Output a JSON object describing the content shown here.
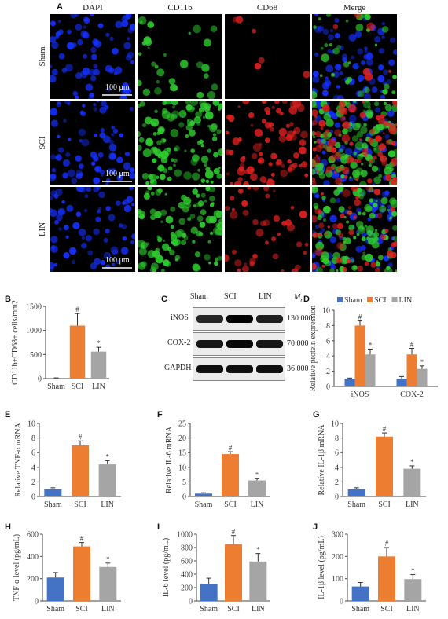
{
  "panels": {
    "A": "A",
    "B": "B",
    "C": "C",
    "D": "D",
    "E": "E",
    "F": "F",
    "G": "G",
    "H": "H",
    "I": "I",
    "J": "J"
  },
  "microscopy": {
    "columns": [
      "DAPI",
      "CD11b",
      "CD68",
      "Merge"
    ],
    "rows": [
      "Sham",
      "SCI",
      "LIN"
    ],
    "scale_bar": "100 μm",
    "colors": {
      "dapi": "#1530ff",
      "cd11b": "#2fcc2f",
      "cd68": "#e02020",
      "background": "#000000"
    }
  },
  "western_blot": {
    "lanes": [
      "Sham",
      "SCI",
      "LIN"
    ],
    "mr_label": "Mr",
    "proteins": [
      {
        "name": "iNOS",
        "mr": "130 000",
        "intensity": [
          0.75,
          1.0,
          0.8
        ]
      },
      {
        "name": "COX-2",
        "mr": "70 000",
        "intensity": [
          0.85,
          0.95,
          0.85
        ]
      },
      {
        "name": "GAPDH",
        "mr": "36 000",
        "intensity": [
          0.9,
          0.9,
          0.9
        ]
      }
    ]
  },
  "colors": {
    "sham": "#4472c4",
    "sci": "#ed7d31",
    "lin": "#a5a5a5"
  },
  "chart_data": [
    {
      "id": "B",
      "type": "bar",
      "categories": [
        "Sham",
        "SCI",
        "LIN"
      ],
      "values": [
        10,
        1100,
        560
      ],
      "errors": [
        5,
        250,
        90
      ],
      "sig": [
        "",
        "#",
        "*"
      ],
      "ylabel": "CD11b+CD68+ cells/mm2",
      "ylim": [
        0,
        1500
      ],
      "yticks": [
        0,
        500,
        1000,
        1500
      ]
    },
    {
      "id": "D",
      "type": "bar",
      "categories": [
        "iNOS",
        "COX-2"
      ],
      "series": [
        {
          "name": "Sham",
          "values": [
            1.0,
            1.0
          ],
          "errors": [
            0.1,
            0.3
          ],
          "sig": [
            "",
            ""
          ]
        },
        {
          "name": "SCI",
          "values": [
            8.0,
            4.2
          ],
          "errors": [
            0.6,
            0.8
          ],
          "sig": [
            "#",
            "#"
          ]
        },
        {
          "name": "LIN",
          "values": [
            4.2,
            2.3
          ],
          "errors": [
            0.7,
            0.4
          ],
          "sig": [
            "*",
            "*"
          ]
        }
      ],
      "ylabel": "Relative protein expression",
      "ylim": [
        0,
        10
      ],
      "yticks": [
        0,
        2,
        4,
        6,
        8,
        10
      ],
      "legend": "top"
    },
    {
      "id": "E",
      "type": "bar",
      "categories": [
        "Sham",
        "SCI",
        "LIN"
      ],
      "values": [
        1.0,
        7.0,
        4.4
      ],
      "errors": [
        0.2,
        0.6,
        0.5
      ],
      "sig": [
        "",
        "#",
        "*"
      ],
      "ylabel": "Relative TNF-α mRNA",
      "ylim": [
        0,
        10
      ],
      "yticks": [
        0,
        2,
        4,
        6,
        8,
        10
      ]
    },
    {
      "id": "F",
      "type": "bar",
      "categories": [
        "Sham",
        "SCI",
        "LIN"
      ],
      "values": [
        1.0,
        14.5,
        5.5
      ],
      "errors": [
        0.3,
        0.8,
        0.6
      ],
      "sig": [
        "",
        "#",
        "*"
      ],
      "ylabel": "Relative IL-6 mRNA",
      "ylim": [
        0,
        25
      ],
      "yticks": [
        0,
        5,
        10,
        15,
        20,
        25
      ]
    },
    {
      "id": "G",
      "type": "bar",
      "categories": [
        "Sham",
        "SCI",
        "LIN"
      ],
      "values": [
        1.0,
        8.2,
        3.8
      ],
      "errors": [
        0.2,
        0.5,
        0.4
      ],
      "sig": [
        "",
        "#",
        "*"
      ],
      "ylabel": "Relative IL-1β mRNA",
      "ylim": [
        0,
        10
      ],
      "yticks": [
        0,
        2,
        4,
        6,
        8,
        10
      ]
    },
    {
      "id": "H",
      "type": "bar",
      "categories": [
        "Sham",
        "SCI",
        "LIN"
      ],
      "values": [
        210,
        490,
        305
      ],
      "errors": [
        45,
        35,
        35
      ],
      "sig": [
        "",
        "#",
        "*"
      ],
      "ylabel": "TNF-α level (pg/mL)",
      "ylim": [
        0,
        600
      ],
      "yticks": [
        0,
        200,
        400,
        600
      ]
    },
    {
      "id": "I",
      "type": "bar",
      "categories": [
        "Sham",
        "SCI",
        "LIN"
      ],
      "values": [
        250,
        850,
        590
      ],
      "errors": [
        90,
        130,
        120
      ],
      "sig": [
        "",
        "#",
        "*"
      ],
      "ylabel": "IL-6 level (pg/mL)",
      "ylim": [
        0,
        1000
      ],
      "yticks": [
        0,
        200,
        400,
        600,
        800,
        1000
      ]
    },
    {
      "id": "J",
      "type": "bar",
      "categories": [
        "Sham",
        "SCI",
        "LIN"
      ],
      "values": [
        65,
        200,
        98
      ],
      "errors": [
        18,
        40,
        20
      ],
      "sig": [
        "",
        "#",
        "*"
      ],
      "ylabel": "IL-1β level (pg/mL)",
      "ylim": [
        0,
        300
      ],
      "yticks": [
        0,
        100,
        200,
        300
      ]
    }
  ]
}
